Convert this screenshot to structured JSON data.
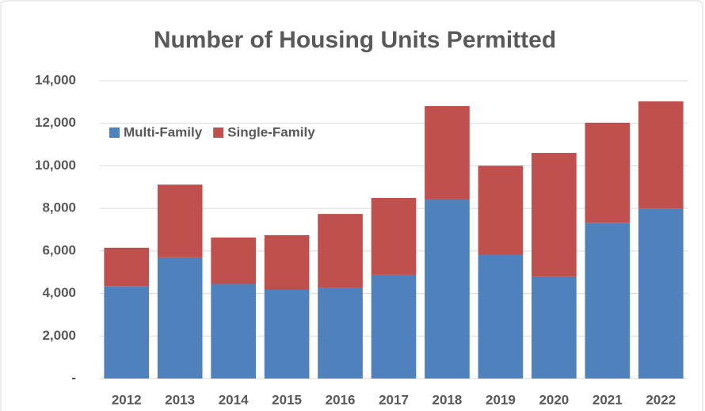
{
  "chart_data": {
    "type": "stacked_bar",
    "title": "Number of Housing Units Permitted",
    "categories": [
      "2012",
      "2013",
      "2014",
      "2015",
      "2016",
      "2017",
      "2018",
      "2019",
      "2020",
      "2021",
      "2022"
    ],
    "series": [
      {
        "name": "Multi-Family",
        "color": "#4f81bd",
        "values": [
          4350,
          5700,
          4450,
          4170,
          4280,
          4880,
          8410,
          5810,
          4800,
          7330,
          8000
        ]
      },
      {
        "name": "Single-Family",
        "color": "#c0504d",
        "values": [
          1800,
          3420,
          2180,
          2570,
          3460,
          3610,
          4400,
          4200,
          5810,
          4700,
          5030
        ]
      }
    ],
    "ylim": [
      0,
      14000
    ],
    "yticks": [
      {
        "value": 0,
        "label": "-"
      },
      {
        "value": 2000,
        "label": "2,000"
      },
      {
        "value": 4000,
        "label": "4,000"
      },
      {
        "value": 6000,
        "label": "6,000"
      },
      {
        "value": 8000,
        "label": "8,000"
      },
      {
        "value": 10000,
        "label": "10,000"
      },
      {
        "value": 12000,
        "label": "12,000"
      },
      {
        "value": 14000,
        "label": "14,000"
      }
    ],
    "grid": true,
    "legend": "top-left"
  }
}
